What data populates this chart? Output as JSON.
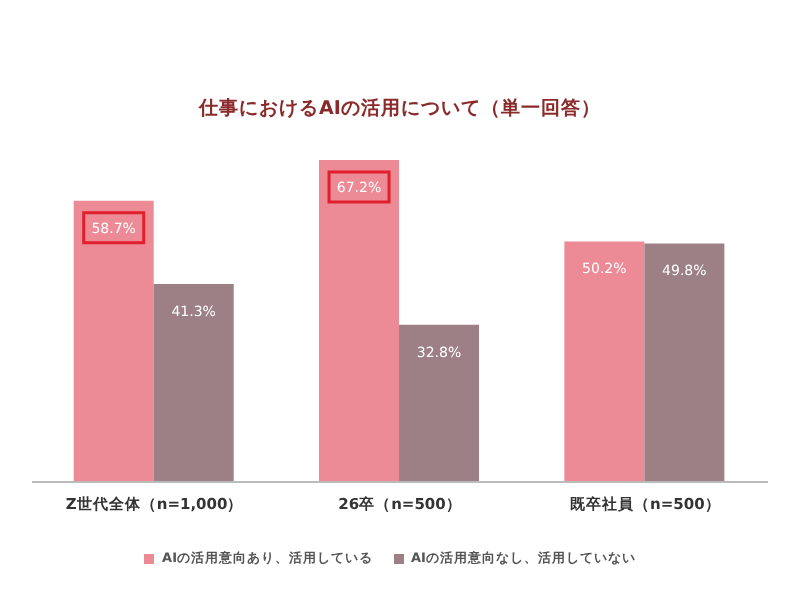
{
  "chart_data": {
    "type": "bar",
    "title": "仕事におけるAIの活用について（単一回答）",
    "categories": [
      "Z世代全体（n=1,000）",
      "26卒（n=500）",
      "既卒社員（n=500）"
    ],
    "series": [
      {
        "name": "AIの活用意向あり、活用している",
        "color": "#ec8a96",
        "values": [
          58.7,
          67.2,
          50.2
        ],
        "value_labels": [
          "58.7%",
          "67.2%",
          "50.2%"
        ]
      },
      {
        "name": "AIの活用意向なし、活用していない",
        "color": "#9c8086",
        "values": [
          41.3,
          32.8,
          49.8
        ],
        "value_labels": [
          "41.3%",
          "32.8%",
          "49.8%"
        ]
      }
    ],
    "legend": "bottom"
  }
}
